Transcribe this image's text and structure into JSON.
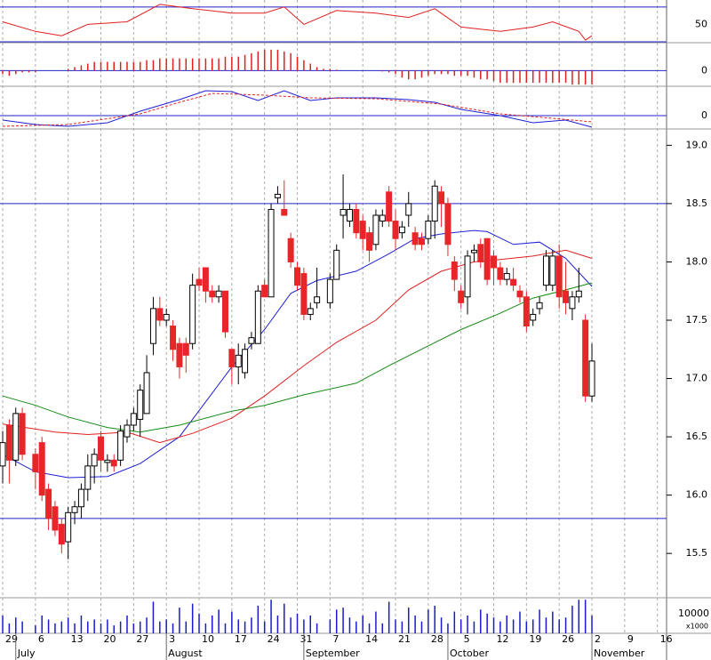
{
  "chart_data": {
    "type": "candlestick",
    "up_color": "#ffffff",
    "down_color": "#e8262a",
    "xlim": [
      -0.41,
      101.4
    ],
    "xticks": [
      {
        "value": 0,
        "label": "29"
      },
      {
        "value": 5,
        "label": "6"
      },
      {
        "value": 10,
        "label": "13"
      },
      {
        "value": 15,
        "label": "20"
      },
      {
        "value": 20,
        "label": "27"
      },
      {
        "value": 25,
        "label": "3"
      },
      {
        "value": 30,
        "label": "10"
      },
      {
        "value": 35,
        "label": "17"
      },
      {
        "value": 40,
        "label": "24"
      },
      {
        "value": 45,
        "label": "31"
      },
      {
        "value": 50,
        "label": "7"
      },
      {
        "value": 55,
        "label": "14"
      },
      {
        "value": 60,
        "label": "21"
      },
      {
        "value": 65,
        "label": "28"
      },
      {
        "value": 70,
        "label": "5"
      },
      {
        "value": 75,
        "label": "12"
      },
      {
        "value": 80,
        "label": "19"
      },
      {
        "value": 85,
        "label": "26"
      },
      {
        "value": 90,
        "label": "2"
      },
      {
        "value": 95,
        "label": "9"
      },
      {
        "value": 100,
        "label": "16"
      }
    ],
    "months": [
      {
        "value": 2,
        "label": "July"
      },
      {
        "value": 25,
        "label": "August"
      },
      {
        "value": 46,
        "label": "September"
      },
      {
        "value": 68,
        "label": "October"
      },
      {
        "value": 90,
        "label": "November"
      }
    ],
    "ylim": [
      15.12,
      19.14
    ],
    "yticks": [
      {
        "value": 19,
        "label": "19.0"
      },
      {
        "value": 18.5,
        "label": "18.5"
      },
      {
        "value": 18,
        "label": "18.0"
      },
      {
        "value": 17.5,
        "label": "17.5"
      },
      {
        "value": 17,
        "label": "17.0"
      },
      {
        "value": 16.5,
        "label": "16.5"
      },
      {
        "value": 16,
        "label": "16.0"
      },
      {
        "value": 15.5,
        "label": "15.5"
      }
    ],
    "hlines": [
      18.5,
      15.8
    ],
    "hline_color": "#2222cc",
    "candles": [
      [
        0,
        16.25,
        16.55,
        16.1,
        16.45,
        9000
      ],
      [
        1,
        16.6,
        16.65,
        16.1,
        16.3,
        5000
      ],
      [
        2,
        16.3,
        16.75,
        16.25,
        16.7,
        8000
      ],
      [
        3,
        16.7,
        16.75,
        16.3,
        16.35,
        6000
      ],
      [
        5,
        16.35,
        16.4,
        16.05,
        16.2,
        4000
      ],
      [
        6,
        16.45,
        16.5,
        15.95,
        16.0,
        9000
      ],
      [
        7,
        16.05,
        16.1,
        15.7,
        15.8,
        7000
      ],
      [
        8,
        15.9,
        15.95,
        15.65,
        15.7,
        5000
      ],
      [
        9,
        15.75,
        15.8,
        15.5,
        15.58,
        6000
      ],
      [
        10,
        15.6,
        15.9,
        15.45,
        15.85,
        8000
      ],
      [
        11,
        15.85,
        15.95,
        15.75,
        15.9,
        5000
      ],
      [
        12,
        15.9,
        16.1,
        15.8,
        16.05,
        9000
      ],
      [
        13,
        16.05,
        16.35,
        15.95,
        16.25,
        6000
      ],
      [
        14,
        16.25,
        16.4,
        16.1,
        16.35,
        7000
      ],
      [
        15,
        16.5,
        16.55,
        16.2,
        16.3,
        5000
      ],
      [
        16,
        16.28,
        16.35,
        16.2,
        16.3,
        7000
      ],
      [
        17,
        16.3,
        16.35,
        16.2,
        16.25,
        4000
      ],
      [
        18,
        16.3,
        16.6,
        16.25,
        16.55,
        6000
      ],
      [
        19,
        16.5,
        16.65,
        16.45,
        16.6,
        9000
      ],
      [
        20,
        16.6,
        16.75,
        16.55,
        16.7,
        5000
      ],
      [
        21,
        16.65,
        16.95,
        16.5,
        16.9,
        6000
      ],
      [
        22,
        16.7,
        17.2,
        16.7,
        17.05,
        8000
      ],
      [
        23,
        17.3,
        17.7,
        17.2,
        17.6,
        16000
      ],
      [
        24,
        17.6,
        17.7,
        17.45,
        17.5,
        6000
      ],
      [
        25,
        17.5,
        17.6,
        17.45,
        17.55,
        7000
      ],
      [
        26,
        17.45,
        17.5,
        17.15,
        17.25,
        5000
      ],
      [
        27,
        17.3,
        17.35,
        17.0,
        17.1,
        13000
      ],
      [
        28,
        17.3,
        17.35,
        17.05,
        17.2,
        6000
      ],
      [
        29,
        17.3,
        17.9,
        17.25,
        17.8,
        15000
      ],
      [
        30,
        17.85,
        17.95,
        17.75,
        17.8,
        10000
      ],
      [
        31,
        17.95,
        17.95,
        17.65,
        17.75,
        5000
      ],
      [
        32,
        17.75,
        17.8,
        17.65,
        17.7,
        9000
      ],
      [
        33,
        17.7,
        17.8,
        17.65,
        17.75,
        12000
      ],
      [
        34,
        17.75,
        17.75,
        17.35,
        17.4,
        5000
      ],
      [
        35,
        17.25,
        17.25,
        16.95,
        17.1,
        11000
      ],
      [
        36,
        17.1,
        17.3,
        16.95,
        17.2,
        7000
      ],
      [
        37,
        17.05,
        17.3,
        17.0,
        17.25,
        6000
      ],
      [
        38,
        17.3,
        17.4,
        17.25,
        17.35,
        8000
      ],
      [
        39,
        17.3,
        17.8,
        17.3,
        17.75,
        14000
      ],
      [
        40,
        17.8,
        17.85,
        17.7,
        17.7,
        6000
      ],
      [
        41,
        17.7,
        18.5,
        17.7,
        18.45,
        17000
      ],
      [
        42,
        18.55,
        18.65,
        18.5,
        18.58,
        9000
      ],
      [
        43,
        18.45,
        18.7,
        18.4,
        18.4,
        15000
      ],
      [
        44,
        18.2,
        18.25,
        17.95,
        18.0,
        8000
      ],
      [
        45,
        17.95,
        18.0,
        17.75,
        17.8,
        10000
      ],
      [
        46,
        17.9,
        17.95,
        17.5,
        17.55,
        7000
      ],
      [
        47,
        17.55,
        17.65,
        17.5,
        17.6,
        9000
      ],
      [
        48,
        17.65,
        17.95,
        17.6,
        17.7,
        5000
      ],
      [
        50,
        17.65,
        17.9,
        17.6,
        17.85,
        7000
      ],
      [
        51,
        17.85,
        18.15,
        17.85,
        18.1,
        12000
      ],
      [
        52,
        18.4,
        18.75,
        18.2,
        18.45,
        13000
      ],
      [
        53,
        18.35,
        18.5,
        18.3,
        18.45,
        8000
      ],
      [
        54,
        18.45,
        18.5,
        18.2,
        18.25,
        6000
      ],
      [
        55,
        18.35,
        18.4,
        18.1,
        18.2,
        9000
      ],
      [
        56,
        18.25,
        18.3,
        18.0,
        18.1,
        5000
      ],
      [
        57,
        18.15,
        18.45,
        18.1,
        18.4,
        11000
      ],
      [
        58,
        18.35,
        18.45,
        18.3,
        18.4,
        5000
      ],
      [
        59,
        18.6,
        18.65,
        18.3,
        18.35,
        16000
      ],
      [
        60,
        18.35,
        18.45,
        18.1,
        18.2,
        7000
      ],
      [
        61,
        18.25,
        18.35,
        18.2,
        18.3,
        6000
      ],
      [
        62,
        18.4,
        18.6,
        18.3,
        18.5,
        13000
      ],
      [
        63,
        18.25,
        18.3,
        18.1,
        18.15,
        9000
      ],
      [
        64,
        18.2,
        18.25,
        18.1,
        18.15,
        6000
      ],
      [
        65,
        18.2,
        18.4,
        18.15,
        18.35,
        12000
      ],
      [
        66,
        18.35,
        18.7,
        18.2,
        18.65,
        14000
      ],
      [
        67,
        18.6,
        18.65,
        18.3,
        18.5,
        8000
      ],
      [
        68,
        18.5,
        18.55,
        18.05,
        18.15,
        5000
      ],
      [
        69,
        18.0,
        18.05,
        17.75,
        17.85,
        11000
      ],
      [
        70,
        17.75,
        17.8,
        17.6,
        17.65,
        7000
      ],
      [
        71,
        17.7,
        18.1,
        17.55,
        18.05,
        9000
      ],
      [
        72,
        18.08,
        18.15,
        18.0,
        18.1,
        6000
      ],
      [
        73,
        18.15,
        18.2,
        17.95,
        18.0,
        12000
      ],
      [
        74,
        18.2,
        18.2,
        17.8,
        17.85,
        10000
      ],
      [
        75,
        18.05,
        18.1,
        17.8,
        17.95,
        8000
      ],
      [
        76,
        17.95,
        18.0,
        17.8,
        17.85,
        6000
      ],
      [
        77,
        17.85,
        17.95,
        17.8,
        17.9,
        9000
      ],
      [
        78,
        17.85,
        17.95,
        17.75,
        17.8,
        7000
      ],
      [
        79,
        17.75,
        17.8,
        17.65,
        17.7,
        11000
      ],
      [
        80,
        17.7,
        17.75,
        17.4,
        17.45,
        6000
      ],
      [
        81,
        17.5,
        17.6,
        17.45,
        17.55,
        7000
      ],
      [
        82,
        17.6,
        17.7,
        17.55,
        17.65,
        12000
      ],
      [
        83,
        17.8,
        18.1,
        17.75,
        18.05,
        8000
      ],
      [
        84,
        17.8,
        18.1,
        17.75,
        18.05,
        11000
      ],
      [
        85,
        18.05,
        18.15,
        17.6,
        17.7,
        7000
      ],
      [
        86,
        17.75,
        18.0,
        17.55,
        17.65,
        8000
      ],
      [
        87,
        17.6,
        17.75,
        17.5,
        17.7,
        14000
      ],
      [
        88,
        17.7,
        17.95,
        17.65,
        17.75,
        17000
      ],
      [
        89,
        17.5,
        17.55,
        16.8,
        16.85,
        17000
      ],
      [
        90,
        16.85,
        17.3,
        16.8,
        17.15,
        9000
      ]
    ],
    "moving_averages": [
      {
        "color": "#1f1fd6",
        "x": [
          0,
          5,
          10,
          16,
          21,
          27,
          31,
          35,
          40,
          44,
          48,
          54,
          59,
          63,
          67,
          72,
          74,
          78,
          82,
          86,
          90
        ],
        "values": [
          16.35,
          16.2,
          16.15,
          16.16,
          16.27,
          16.5,
          16.8,
          17.1,
          17.42,
          17.73,
          17.84,
          17.92,
          18.07,
          18.2,
          18.24,
          18.27,
          18.26,
          18.15,
          18.17,
          18.03,
          17.79
        ]
      },
      {
        "color": "#e02020",
        "x": [
          0,
          8,
          13,
          19,
          24,
          29,
          35,
          40,
          46,
          51,
          57,
          62,
          67,
          72,
          76,
          81,
          86,
          90
        ],
        "values": [
          16.61,
          16.54,
          16.52,
          16.54,
          16.45,
          16.53,
          16.66,
          16.85,
          17.11,
          17.31,
          17.5,
          17.76,
          17.92,
          18.0,
          18.02,
          18.05,
          18.1,
          18.03
        ]
      },
      {
        "color": "#148a14",
        "x": [
          0,
          5,
          10,
          16,
          21,
          27,
          35,
          40,
          46,
          54,
          59,
          65,
          70,
          76,
          81,
          86,
          90
        ],
        "values": [
          16.85,
          16.77,
          16.67,
          16.58,
          16.54,
          16.6,
          16.72,
          16.77,
          16.86,
          16.96,
          17.11,
          17.28,
          17.42,
          17.56,
          17.69,
          17.76,
          17.82
        ]
      }
    ],
    "rsi": {
      "ylim": [
        29,
        78
      ],
      "yticks": [
        50
      ],
      "levels": [
        70,
        30
      ],
      "color": "#e02020",
      "x": [
        0,
        5,
        9,
        13,
        19,
        24,
        29,
        35,
        40,
        43,
        46,
        51,
        57,
        62,
        66,
        70,
        76,
        81,
        84,
        88,
        89,
        90
      ],
      "values": [
        53,
        42,
        37,
        50,
        53,
        73,
        68,
        63,
        63,
        70,
        50,
        66,
        63,
        58,
        68,
        47,
        42,
        47,
        53,
        42,
        32,
        37
      ]
    },
    "histogram": {
      "ylim": [
        -0.09,
        0.16
      ],
      "yticks": [
        0
      ],
      "color": "#e02020",
      "values": [
        -0.02,
        -0.03,
        -0.02,
        -0.01,
        -0.01,
        -0.01,
        0,
        0,
        0,
        0,
        0.01,
        0.02,
        0.03,
        0.04,
        0.05,
        0.05,
        0.05,
        0.05,
        0.05,
        0.05,
        0.05,
        0.05,
        0.06,
        0.06,
        0.07,
        0.07,
        0.07,
        0.07,
        0.07,
        0.07,
        0.07,
        0.07,
        0.07,
        0.07,
        0.08,
        0.08,
        0.08,
        0.09,
        0.1,
        0.11,
        0.12,
        0.12,
        0.12,
        0.11,
        0.1,
        0.08,
        0.06,
        0.04,
        0.02,
        0.01,
        0.01,
        0.005,
        0,
        0,
        0,
        0,
        0,
        0,
        -0.005,
        -0.01,
        -0.02,
        -0.04,
        -0.05,
        -0.05,
        -0.04,
        -0.03,
        -0.02,
        -0.02,
        -0.02,
        -0.03,
        -0.03,
        -0.03,
        -0.04,
        -0.05,
        -0.05,
        -0.06,
        -0.07,
        -0.07,
        -0.07,
        -0.07,
        -0.07,
        -0.07,
        -0.07,
        -0.07,
        -0.07,
        -0.07,
        -0.07,
        -0.08,
        -0.08,
        -0.08,
        -0.08
      ]
    },
    "macd": {
      "ylim": [
        -0.15,
        0.33
      ],
      "yticks": [
        0
      ],
      "series": [
        {
          "color": "#1f1fd6",
          "x": [
            0,
            5,
            10,
            16,
            21,
            27,
            31,
            35,
            39,
            43,
            47,
            51,
            57,
            62,
            66,
            70,
            76,
            81,
            86,
            90
          ],
          "values": [
            -0.05,
            -0.1,
            -0.12,
            -0.08,
            0.05,
            0.18,
            0.28,
            0.27,
            0.17,
            0.28,
            0.17,
            0.2,
            0.2,
            0.18,
            0.15,
            0.07,
            0,
            -0.08,
            -0.05,
            -0.13
          ]
        },
        {
          "color": "#e02020",
          "dashed": true,
          "x": [
            0,
            10,
            21,
            27,
            32,
            40,
            47,
            57,
            67,
            76,
            84,
            90
          ],
          "values": [
            -0.12,
            -0.1,
            0.02,
            0.15,
            0.25,
            0.23,
            0.2,
            0.19,
            0.13,
            0.02,
            -0.03,
            -0.07
          ]
        }
      ]
    },
    "volume": {
      "ylim": [
        0,
        18000
      ],
      "yticks": [
        10000
      ],
      "unit": "x1000",
      "color": "#1a1acc"
    }
  }
}
